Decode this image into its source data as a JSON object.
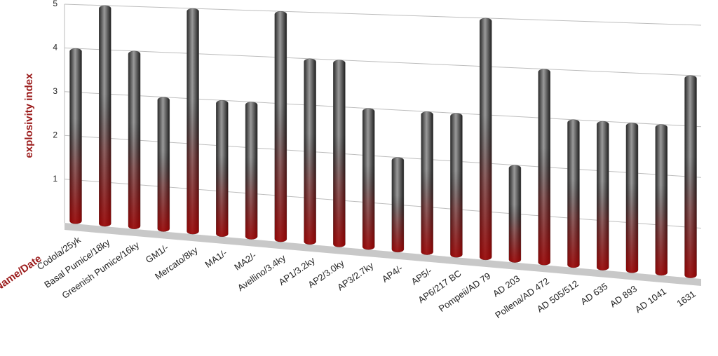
{
  "chart_data": {
    "type": "bar",
    "y_label": "explosivity index",
    "x_label": "Name/Date",
    "categories": [
      "Codola/25yk",
      "Basal Pumice/18ky",
      "Greenish Pumice/16ky",
      "GM1/-",
      "Mercato/8ky",
      "MA1/-",
      "MA2/-",
      "Avellino/3.4ky",
      "AP1/3.2ky",
      "AP2/3.0ky",
      "AP3/2.7ky",
      "AP4/-",
      "AP5/-",
      "AP6/217 BC",
      "Pompeii/AD 79",
      "AD 203",
      "Pollena/AD 472",
      "AD 505/512",
      "AD 635",
      "AD 893",
      "AD 1041",
      "1631"
    ],
    "values": [
      4,
      5,
      4,
      3,
      5,
      3,
      3,
      5,
      4,
      4,
      3,
      2,
      3,
      3,
      5,
      2,
      4,
      3,
      3,
      3,
      3,
      4
    ],
    "color": "#555555",
    "ylim": [
      0,
      5
    ],
    "yticks": [
      1,
      2,
      3,
      4,
      5
    ],
    "grid": true
  }
}
